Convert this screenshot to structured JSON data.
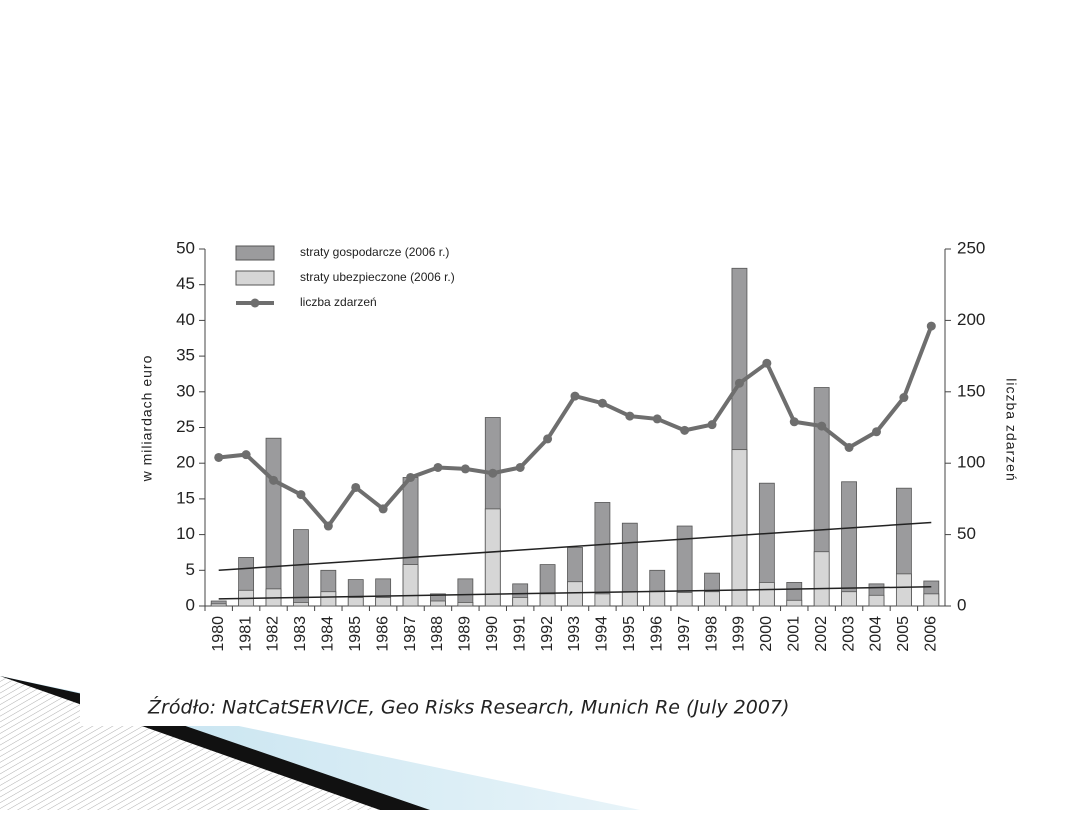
{
  "chart_data": {
    "type": "bar_line",
    "ylabel": "w miliardach euro",
    "y2label": "liczba zdarzeń",
    "source": "Źródło: NatCatSERVICE, Geo Risks Research, Munich Re (July 2007)",
    "categories": [
      "1980",
      "1981",
      "1982",
      "1983",
      "1984",
      "1985",
      "1986",
      "1987",
      "1988",
      "1989",
      "1990",
      "1991",
      "1992",
      "1993",
      "1994",
      "1995",
      "1996",
      "1997",
      "1998",
      "1999",
      "2000",
      "2001",
      "2002",
      "2003",
      "2004",
      "2005",
      "2006"
    ],
    "series": [
      {
        "name": "straty gospodarcze (2006 r.)",
        "color": "#9b9b9d",
        "kind": "bar",
        "values": [
          0.7,
          6.8,
          23.5,
          10.7,
          5.0,
          3.7,
          3.8,
          18.0,
          1.7,
          3.8,
          26.4,
          3.1,
          5.8,
          8.2,
          14.5,
          11.6,
          5.0,
          11.2,
          4.6,
          47.3,
          17.2,
          3.3,
          30.6,
          17.4,
          3.1,
          16.5,
          3.5
        ]
      },
      {
        "name": "straty ubezpieczone (2006 r.)",
        "color": "#d6d6d6",
        "kind": "bar",
        "values": [
          0.3,
          2.2,
          2.4,
          0.5,
          2.0,
          1.2,
          1.2,
          5.8,
          0.7,
          0.5,
          13.6,
          1.2,
          1.7,
          3.4,
          1.7,
          2.0,
          2.0,
          1.9,
          2.0,
          21.9,
          3.3,
          0.8,
          7.6,
          2.0,
          1.5,
          4.5,
          1.7
        ]
      },
      {
        "name": "liczba zdarzeń",
        "color": "#6e6e6e",
        "kind": "line",
        "axis": "y2",
        "values": [
          104,
          106,
          88,
          78,
          56,
          83,
          68,
          90,
          97,
          96,
          93,
          97,
          117,
          147,
          142,
          133,
          131,
          123,
          127,
          156,
          170,
          129,
          126,
          111,
          122,
          146,
          196
        ]
      }
    ],
    "trend_lines": [
      {
        "color": "#222222",
        "values": [
          5.0,
          11.7
        ]
      },
      {
        "color": "#222222",
        "values": [
          1.0,
          2.7
        ]
      }
    ],
    "ylim": [
      0,
      50
    ],
    "yticks": [
      0,
      5,
      10,
      15,
      20,
      25,
      30,
      35,
      40,
      45,
      50
    ],
    "y2lim": [
      0,
      250
    ],
    "y2ticks": [
      0,
      50,
      100,
      150,
      200,
      250
    ],
    "legend": "upper left"
  }
}
